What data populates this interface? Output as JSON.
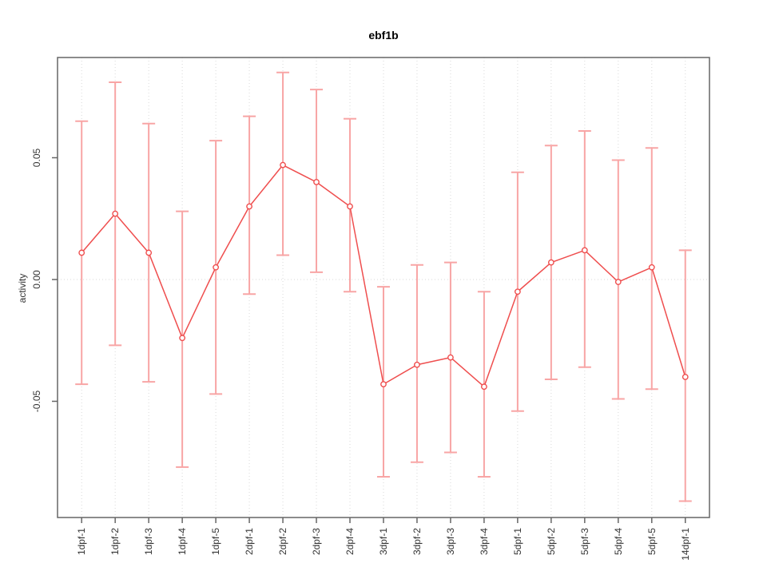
{
  "title": "ebf1b",
  "chart_data": {
    "type": "line",
    "title": "ebf1b",
    "xlabel": "",
    "ylabel": "activity",
    "legend_position": "none",
    "categories": [
      "1dpf-1",
      "1dpf-2",
      "1dpf-3",
      "1dpf-4",
      "1dpf-5",
      "2dpf-1",
      "2dpf-2",
      "2dpf-3",
      "2dpf-4",
      "3dpf-1",
      "3dpf-2",
      "3dpf-3",
      "3dpf-4",
      "5dpf-1",
      "5dpf-2",
      "5dpf-3",
      "5dpf-4",
      "5dpf-5",
      "14dpf-1"
    ],
    "series": [
      {
        "name": "activity",
        "values": [
          0.011,
          0.027,
          0.011,
          -0.024,
          0.005,
          0.03,
          0.047,
          0.04,
          0.03,
          -0.043,
          -0.035,
          -0.032,
          -0.044,
          -0.005,
          0.007,
          0.012,
          -0.001,
          0.005,
          -0.04
        ]
      }
    ],
    "error_bars": {
      "lower": [
        -0.043,
        -0.027,
        -0.042,
        -0.077,
        -0.047,
        -0.006,
        0.01,
        0.003,
        -0.005,
        -0.081,
        -0.075,
        -0.071,
        -0.081,
        -0.054,
        -0.041,
        -0.036,
        -0.049,
        -0.045,
        -0.091
      ],
      "upper": [
        0.065,
        0.081,
        0.064,
        0.028,
        0.057,
        0.067,
        0.085,
        0.078,
        0.066,
        -0.003,
        0.006,
        0.007,
        -0.005,
        0.044,
        0.055,
        0.061,
        0.049,
        0.054,
        0.012
      ]
    },
    "yticks": [
      {
        "value": 0.05,
        "label": "0.05"
      },
      {
        "value": 0.0,
        "label": "0.00"
      },
      {
        "value": -0.05,
        "label": "-0.05"
      }
    ],
    "ylim": [
      -0.098,
      0.091
    ],
    "grid": {
      "vertical_dotted_at_categories": true,
      "horizontal_dotted_zero_line": true
    },
    "colors": {
      "series": "#ef4e4e",
      "point_fill": "#ffffff",
      "error_bar": "#f8a5a5",
      "grid": "#d9d9d9",
      "axis": "#666666",
      "tick_text": "#333333"
    }
  }
}
